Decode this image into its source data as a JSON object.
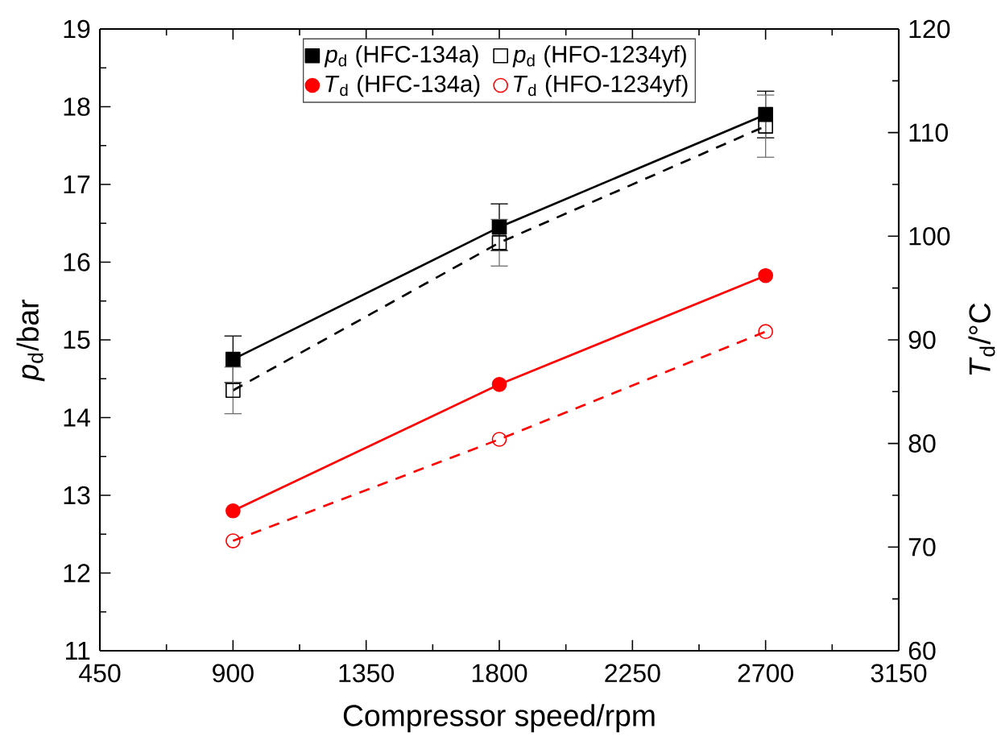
{
  "chart_data": {
    "type": "line",
    "xlabel": "Compressor speed/rpm",
    "ylabel": "*p*$_{d}$/bar",
    "y2label": "*T*$_{d}$/°C",
    "x": [
      900,
      1800,
      2700
    ],
    "xlim": [
      450,
      3150
    ],
    "xticks": [
      450,
      900,
      1350,
      1800,
      2250,
      2700,
      3150
    ],
    "ylim": [
      11,
      19
    ],
    "yticks": [
      11,
      12,
      13,
      14,
      15,
      16,
      17,
      18,
      19
    ],
    "y2lim": [
      60,
      120
    ],
    "y2ticks": [
      60,
      70,
      80,
      90,
      100,
      110,
      120
    ],
    "legend": "top",
    "grid": false,
    "series": [
      {
        "name": "*p*$_{d}$ (HFC-134a)",
        "color": "#000000",
        "marker": "square",
        "line_style": "solid",
        "values": [
          14.75,
          16.45,
          17.9
        ],
        "errors": [
          0.3,
          0.3,
          0.3
        ]
      },
      {
        "name": "*p*$_{d}$ (HFO-1234yf)",
        "color": "#000000",
        "marker": "square",
        "line_style": "dashed",
        "values": [
          14.35,
          16.25,
          17.75
        ],
        "errors": [
          0.3,
          0.3,
          0.4
        ]
      },
      {
        "name": "*T*$_{d}$ (HFC-134a)",
        "color": "#ff0000",
        "marker": "circle",
        "line_style": "solid",
        "axis": "y2",
        "values": [
          73.5,
          85.7,
          96.2
        ]
      },
      {
        "name": "*T*$_{d}$ (HFO-1234yf)",
        "color": "#ff0000",
        "marker": "circle",
        "line_style": "dashed",
        "axis": "y2",
        "values": [
          70.6,
          80.4,
          90.8
        ]
      }
    ]
  }
}
